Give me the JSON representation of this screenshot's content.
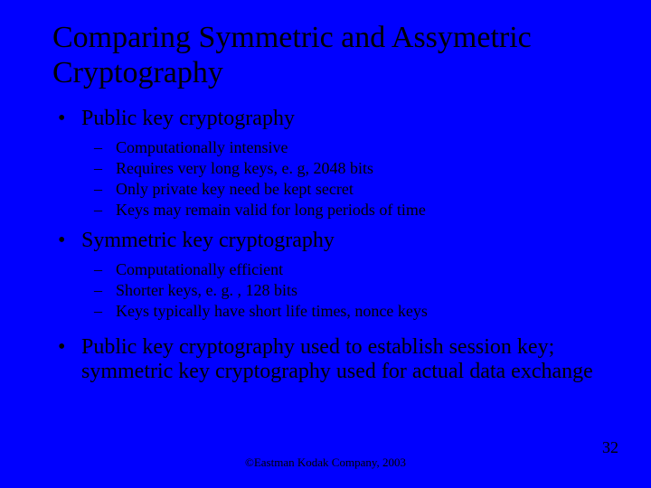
{
  "colors": {
    "background": "#0000ff",
    "text": "#000000"
  },
  "typography": {
    "family": "Times New Roman",
    "title_size_pt": 34,
    "level1_size_pt": 24,
    "level2_size_pt": 18,
    "footer_size_pt": 13,
    "pagenum_size_pt": 18
  },
  "markers": {
    "level1": "•",
    "level2": "–"
  },
  "title": "Comparing Symmetric and Assymetric Cryptography",
  "sections": [
    {
      "heading": "Public key cryptography",
      "items": [
        "Computationally intensive",
        "Requires very long keys, e. g, 2048 bits",
        "Only private key need be kept secret",
        "Keys may remain valid for long periods of time"
      ]
    },
    {
      "heading": "Symmetric key cryptography",
      "items": [
        "Computationally efficient",
        "Shorter keys, e. g. , 128 bits",
        "Keys typically have short life times, nonce keys"
      ]
    },
    {
      "heading": "Public key cryptography used to establish session key; symmetric key cryptography used for actual data exchange",
      "items": []
    }
  ],
  "footer": "©Eastman Kodak Company, 2003",
  "page_number": "32"
}
